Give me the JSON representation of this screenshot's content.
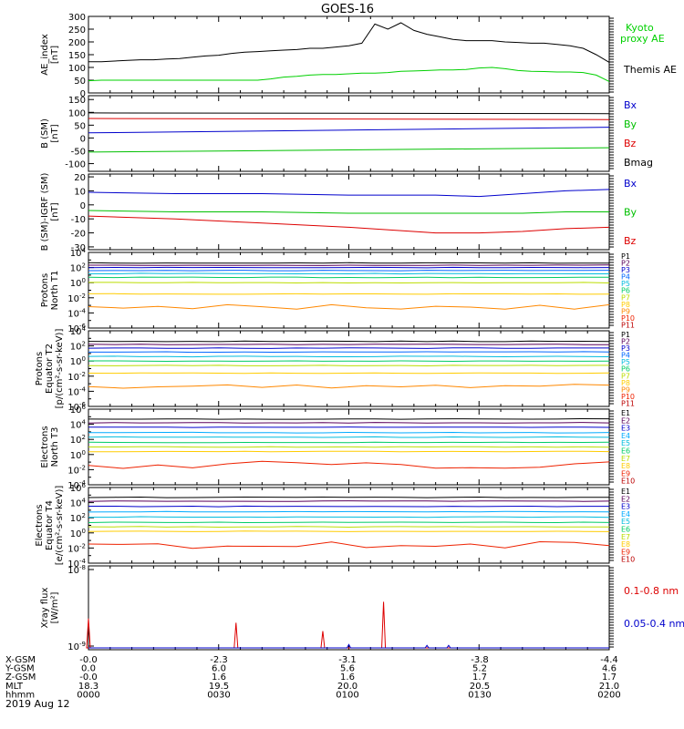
{
  "title": "GOES-16",
  "date": "2019 Aug 12",
  "chart_data": [
    {
      "type": "line",
      "ylabel": [
        "AE_index",
        "[nT]"
      ],
      "ylim": [
        0,
        300
      ],
      "yticks": [
        "0",
        "50",
        "100",
        "150",
        "200",
        "250",
        "300"
      ],
      "x": [
        0,
        3,
        6,
        9,
        12,
        15,
        18,
        21,
        24,
        27,
        30,
        33,
        36,
        39,
        42,
        45,
        48,
        51,
        54,
        57,
        60,
        63,
        66,
        69,
        72,
        75,
        78,
        81,
        84,
        87,
        90,
        93,
        96,
        99,
        102,
        105,
        108,
        111,
        114,
        117,
        120
      ],
      "series": [
        {
          "name": "Kyoto proxy AE",
          "color": "#00d000",
          "values": [
            48,
            50,
            50,
            50,
            50,
            50,
            50,
            50,
            50,
            50,
            50,
            50,
            50,
            50,
            55,
            62,
            65,
            70,
            72,
            72,
            75,
            78,
            78,
            80,
            85,
            86,
            88,
            90,
            90,
            92,
            98,
            100,
            95,
            88,
            85,
            84,
            82,
            82,
            80,
            70,
            45
          ]
        },
        {
          "name": "Themis AE",
          "color": "#000000",
          "values": [
            122,
            122,
            125,
            128,
            130,
            130,
            133,
            135,
            140,
            145,
            148,
            155,
            160,
            162,
            165,
            168,
            170,
            175,
            175,
            180,
            185,
            195,
            270,
            250,
            275,
            245,
            230,
            220,
            210,
            205,
            205,
            205,
            200,
            198,
            195,
            195,
            190,
            185,
            175,
            150,
            120
          ]
        }
      ]
    },
    {
      "type": "line",
      "ylabel": [
        "B (SM)",
        "[nT]"
      ],
      "ylim": [
        -130,
        165
      ],
      "yticks": [
        "-100",
        "-50",
        "0",
        "50",
        "100",
        "150"
      ],
      "x": [
        0,
        120
      ],
      "series": [
        {
          "name": "Bx",
          "color": "#0000cc",
          "values": [
            20,
            42
          ]
        },
        {
          "name": "By",
          "color": "#00c000",
          "values": [
            -55,
            -38
          ]
        },
        {
          "name": "Bz",
          "color": "#dd0000",
          "values": [
            76,
            72
          ]
        },
        {
          "name": "Bmag",
          "color": "#000000",
          "values": [
            98,
            95
          ]
        }
      ]
    },
    {
      "type": "line",
      "ylabel": [
        "B (SM)-IGRF (SM)",
        "[nT]"
      ],
      "ylim": [
        -32,
        22
      ],
      "yticks": [
        "-30",
        "-20",
        "-10",
        "0",
        "10",
        "20"
      ],
      "x": [
        0,
        20,
        40,
        60,
        80,
        90,
        100,
        110,
        120
      ],
      "series": [
        {
          "name": "Bx",
          "color": "#0000cc",
          "values": [
            9,
            8,
            8,
            7,
            7,
            6,
            8,
            10,
            11
          ]
        },
        {
          "name": "By",
          "color": "#00c000",
          "values": [
            -4,
            -5,
            -5,
            -6,
            -6,
            -6,
            -6,
            -5,
            -5
          ]
        },
        {
          "name": "Bz",
          "color": "#dd0000",
          "values": [
            -8,
            -10,
            -13,
            -16,
            -20,
            -20,
            -19,
            -17,
            -16
          ]
        }
      ]
    },
    {
      "type": "line",
      "ylabel": [
        "Protons",
        "North T1"
      ],
      "yscale": "log",
      "ylim_exp": [
        -6,
        4
      ],
      "yticks": [
        "10^-6",
        "10^-4",
        "10^-2",
        "10^0",
        "10^2",
        "10^4"
      ],
      "labels": [
        "P1",
        "P2",
        "P3",
        "P4",
        "P5",
        "P6",
        "P7",
        "P8",
        "P9",
        "P10",
        "P11"
      ],
      "colors": [
        "#000000",
        "#5a005a",
        "#0000cc",
        "#0066ff",
        "#00bbdd",
        "#00cc66",
        "#bbdd00",
        "#ffcc00",
        "#ff8800",
        "#ee2200",
        "#bb0000"
      ],
      "levels_exp": [
        2.6,
        2.3,
        2.0,
        1.6,
        1.2,
        0.7,
        0.0,
        -1.5,
        -3.2,
        null,
        null
      ]
    },
    {
      "type": "line",
      "ylabel": [
        "Protons",
        "Equator T2",
        "[p/(cm²-s-sr-keV)]"
      ],
      "yscale": "log",
      "ylim_exp": [
        -6,
        4
      ],
      "yticks": [
        "10^-6",
        "10^-4",
        "10^-2",
        "10^0",
        "10^2",
        "10^4"
      ],
      "labels": [
        "P1",
        "P2",
        "P3",
        "P4",
        "P5",
        "P6",
        "P7",
        "P8",
        "P9",
        "P10",
        "P11"
      ],
      "colors": [
        "#000000",
        "#5a005a",
        "#0000cc",
        "#0066ff",
        "#00bbdd",
        "#00cc66",
        "#bbdd00",
        "#ffcc00",
        "#ff8800",
        "#ee2200",
        "#bb0000"
      ],
      "levels_exp": [
        2.6,
        2.2,
        1.7,
        1.2,
        0.6,
        0.0,
        -0.6,
        -1.6,
        -3.3,
        null,
        null
      ]
    },
    {
      "type": "line",
      "ylabel": [
        "Electrons",
        "North T3"
      ],
      "yscale": "log",
      "ylim_exp": [
        -4,
        6
      ],
      "yticks": [
        "10^-4",
        "10^-2",
        "10^0",
        "10^2",
        "10^4",
        "10^6"
      ],
      "labels": [
        "E1",
        "E2",
        "E3",
        "E4",
        "E5",
        "E6",
        "E7",
        "E8",
        "E9",
        "E10"
      ],
      "colors": [
        "#000000",
        "#5a005a",
        "#0000cc",
        "#00aaff",
        "#00bbdd",
        "#00cc66",
        "#bbdd00",
        "#ffcc00",
        "#ee2200",
        "#bb0000"
      ],
      "levels_exp": [
        4.7,
        4.2,
        3.6,
        2.9,
        2.3,
        1.6,
        1.0,
        0.4,
        -1.4,
        null
      ]
    },
    {
      "type": "line",
      "ylabel": [
        "Electrons",
        "Equator T4",
        "[e/(cm²-s-sr-keV)]"
      ],
      "yscale": "log",
      "ylim_exp": [
        -4,
        6
      ],
      "yticks": [
        "10^-4",
        "10^-2",
        "10^0",
        "10^2",
        "10^4",
        "10^6"
      ],
      "labels": [
        "E1",
        "E2",
        "E3",
        "E4",
        "E5",
        "E6",
        "E7",
        "E8",
        "E9",
        "E10"
      ],
      "colors": [
        "#000000",
        "#5a005a",
        "#0000cc",
        "#00aaff",
        "#00bbdd",
        "#00cc66",
        "#bbdd00",
        "#ffcc00",
        "#ee2200",
        "#bb0000"
      ],
      "levels_exp": [
        4.7,
        4.2,
        3.5,
        2.8,
        2.1,
        1.4,
        0.8,
        0.2,
        -1.6,
        null
      ]
    },
    {
      "type": "line",
      "ylabel": [
        "Xray flux",
        "[W/m²]"
      ],
      "yscale": "log",
      "yticks": [
        "10^-9",
        "10^-8"
      ],
      "series": [
        {
          "name": "0.1-0.8 nm",
          "color": "#dd0000",
          "spikes": [
            [
              0,
              0.35
            ],
            [
              34,
              0.3
            ],
            [
              54,
              0.2
            ],
            [
              68,
              0.55
            ]
          ]
        },
        {
          "name": "0.05-0.4 nm",
          "color": "#0000cc",
          "spikes": [
            [
              60,
              0.04
            ],
            [
              78,
              0.03
            ],
            [
              83,
              0.03
            ]
          ]
        }
      ]
    }
  ],
  "orbit": {
    "row_labels": [
      "X-GSM",
      "Y-GSM",
      "Z-GSM",
      "MLT",
      "hhmm"
    ],
    "columns": [
      [
        "-0.0",
        "0.0",
        "-0.0",
        "18.3",
        "0000"
      ],
      [
        "-2.3",
        "6.0",
        "1.6",
        "19.5",
        "0030"
      ],
      [
        "-3.1",
        "5.6",
        "1.6",
        "20.0",
        "0100"
      ],
      [
        "-3.8",
        "5.2",
        "1.7",
        "20.5",
        "0130"
      ],
      [
        "-4.4",
        "4.6",
        "1.7",
        "21.0",
        "0200"
      ]
    ]
  }
}
